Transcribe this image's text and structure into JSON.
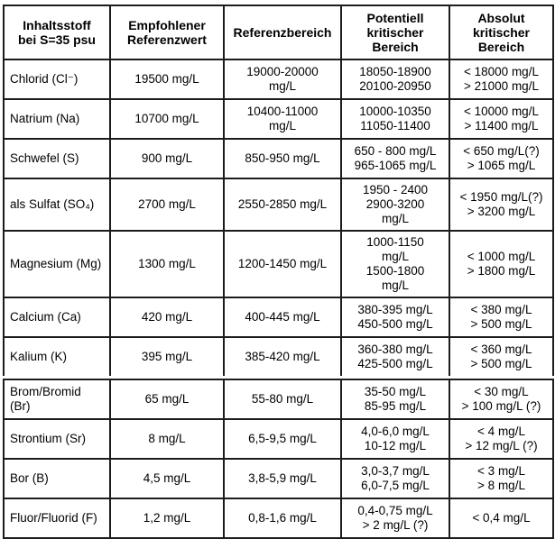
{
  "colors": {
    "border": "#1c1c1c",
    "text": "#000000",
    "background": "#ffffff"
  },
  "table": {
    "title_column_header": "Inhaltsstoff bei S=35 psu",
    "headers": [
      [
        "Inhaltsstoff",
        "bei S=35 psu"
      ],
      [
        "Empfohlener",
        "Referenzwert"
      ],
      [
        "Referenzbereich"
      ],
      [
        "Potentiell",
        "kritischer",
        "Bereich"
      ],
      [
        "Absolut",
        "kritischer",
        "Bereich"
      ]
    ],
    "sections": [
      {
        "rows": [
          {
            "cells": [
              [
                "Chlorid (Cl⁻)"
              ],
              [
                "19500 mg/L"
              ],
              [
                "19000-20000",
                "mg/L"
              ],
              [
                "18050-18900",
                "20100-20950"
              ],
              [
                "< 18000 mg/L",
                "> 21000 mg/L"
              ]
            ]
          },
          {
            "cells": [
              [
                "Natrium (Na)"
              ],
              [
                "10700 mg/L"
              ],
              [
                "10400-11000",
                "mg/L"
              ],
              [
                "10000-10350",
                "11050-11400"
              ],
              [
                "< 10000 mg/L",
                "> 11400 mg/L"
              ]
            ]
          },
          {
            "cells": [
              [
                "Schwefel (S)"
              ],
              [
                "900 mg/L"
              ],
              [
                "850-950 mg/L"
              ],
              [
                "650 - 800 mg/L",
                "965-1065 mg/L"
              ],
              [
                "< 650 mg/L(?)",
                "> 1065 mg/L"
              ]
            ]
          },
          {
            "cells": [
              [
                "als Sulfat (SO₄)"
              ],
              [
                "2700 mg/L"
              ],
              [
                "2550-2850 mg/L"
              ],
              [
                "1950 - 2400",
                "2900-3200",
                "mg/L"
              ],
              [
                "< 1950 mg/L(?)",
                "> 3200 mg/L"
              ]
            ]
          },
          {
            "cells": [
              [
                "Magnesium (Mg)"
              ],
              [
                "1300 mg/L"
              ],
              [
                "1200-1450 mg/L"
              ],
              [
                "1000-1150",
                "mg/L",
                "1500-1800",
                "mg/L"
              ],
              [
                "< 1000 mg/L",
                "> 1800 mg/L"
              ]
            ]
          },
          {
            "cells": [
              [
                "Calcium (Ca)"
              ],
              [
                "420 mg/L"
              ],
              [
                "400-445 mg/L"
              ],
              [
                "380-395 mg/L",
                "450-500 mg/L"
              ],
              [
                "< 380 mg/L",
                "> 500 mg/L"
              ]
            ]
          },
          {
            "cells": [
              [
                "Kalium (K)"
              ],
              [
                "395 mg/L"
              ],
              [
                "385-420 mg/L"
              ],
              [
                "360-380 mg/L",
                "425-500 mg/L"
              ],
              [
                "< 360 mg/L",
                "> 500 mg/L"
              ]
            ]
          }
        ]
      },
      {
        "rows": [
          {
            "cells": [
              [
                "Brom/Bromid",
                "(Br)"
              ],
              [
                "65 mg/L"
              ],
              [
                "55-80 mg/L"
              ],
              [
                "35-50 mg/L",
                "85-95 mg/L"
              ],
              [
                "< 30 mg/L",
                "> 100 mg/L (?)"
              ]
            ]
          },
          {
            "cells": [
              [
                "Strontium (Sr)"
              ],
              [
                "8 mg/L"
              ],
              [
                "6,5-9,5 mg/L"
              ],
              [
                "4,0-6,0 mg/L",
                "10-12 mg/L"
              ],
              [
                "< 4 mg/L",
                "> 12 mg/L (?)"
              ]
            ]
          },
          {
            "cells": [
              [
                "Bor (B)"
              ],
              [
                "4,5 mg/L"
              ],
              [
                "3,8-5,9 mg/L"
              ],
              [
                "3,0-3,7 mg/L",
                "6,0-7,5 mg/L"
              ],
              [
                "< 3 mg/L",
                "> 8 mg/L"
              ]
            ]
          },
          {
            "cells": [
              [
                "Fluor/Fluorid (F)"
              ],
              [
                "1,2 mg/L"
              ],
              [
                "0,8-1,6 mg/L"
              ],
              [
                "0,4-0,75 mg/L",
                "> 2 mg/L (?)"
              ],
              [
                "< 0,4 mg/L"
              ]
            ]
          }
        ]
      }
    ]
  }
}
